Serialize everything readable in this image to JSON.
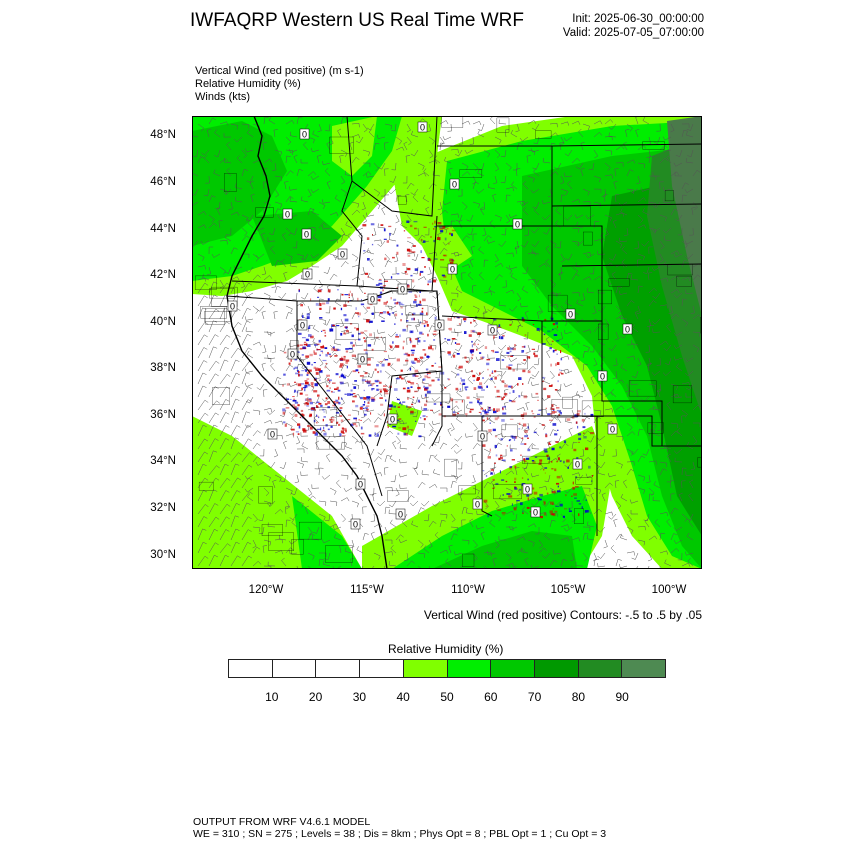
{
  "header": {
    "title": "IWFAQRP Western US Real Time WRF",
    "init": "Init: 2025-06-30_00:00:00",
    "valid": "Valid: 2025-07-05_07:00:00"
  },
  "fields": [
    "Vertical Wind (red positive)   (m s-1)",
    "Relative Humidity   (%)",
    "Winds   (kts)"
  ],
  "map": {
    "lat_labels": [
      "48°N",
      "46°N",
      "44°N",
      "42°N",
      "40°N",
      "38°N",
      "36°N",
      "34°N",
      "32°N",
      "30°N"
    ],
    "lon_labels": [
      "120°W",
      "115°W",
      "110°W",
      "105°W",
      "100°W"
    ],
    "contour_label": "0",
    "colors": {
      "dry": "#ffffff",
      "rh40": "#80ff00",
      "rh50": "#00ee00",
      "rh60": "#00c800",
      "rh70": "#00a000",
      "rh80": "#228b22",
      "rh90": "#4a7a4a",
      "updraft": "#cc0000",
      "downdraft": "#0000cc"
    }
  },
  "contour_note": "Vertical Wind (red positive) Contours: -.5 to .5 by .05",
  "colorbar": {
    "title": "Relative Humidity  (%)",
    "colors": [
      "#ffffff",
      "#ffffff",
      "#ffffff",
      "#ffffff",
      "#80ff00",
      "#00ee00",
      "#00c800",
      "#009900",
      "#228b22",
      "#4e8a52"
    ],
    "labels": [
      "10",
      "20",
      "30",
      "40",
      "50",
      "60",
      "70",
      "80",
      "90"
    ]
  },
  "footer": {
    "line1": "OUTPUT FROM WRF V4.6.1 MODEL",
    "line2": "WE = 310 ; SN = 275 ; Levels = 38 ; Dis = 8km ; Phys Opt = 8 ; PBL Opt = 1 ; Cu Opt = 3"
  }
}
